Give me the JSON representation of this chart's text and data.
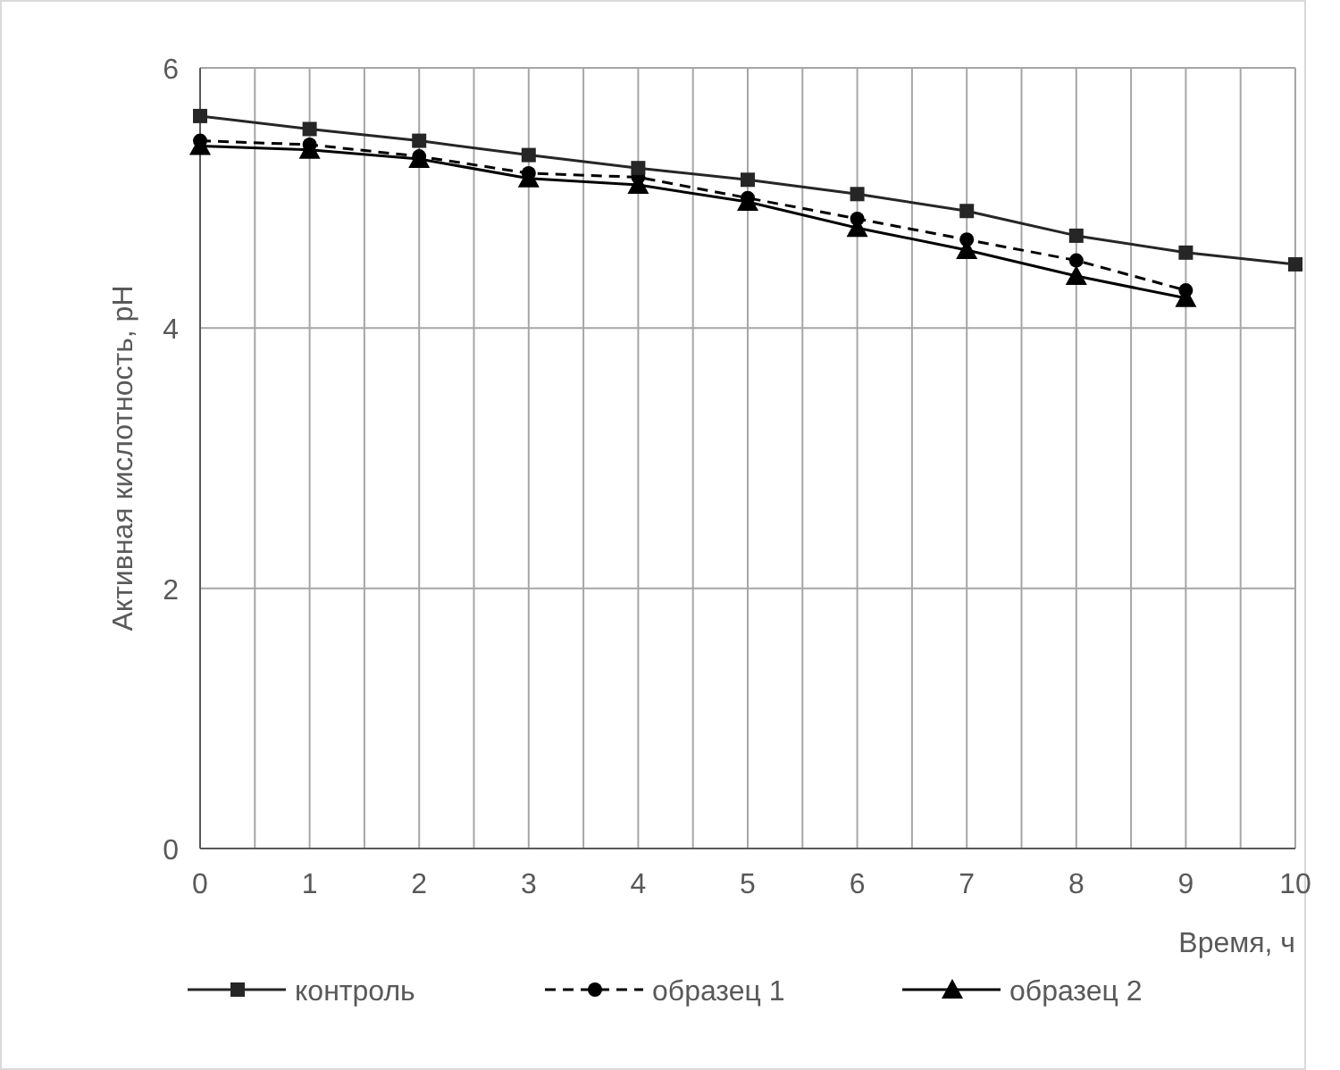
{
  "chart_data": {
    "type": "line",
    "xlabel": "Время, ч",
    "ylabel": "Активная кислотность, pH",
    "x": [
      0,
      1,
      2,
      3,
      4,
      5,
      6,
      7,
      8,
      9,
      10
    ],
    "xlim": [
      0,
      10
    ],
    "ylim": [
      0,
      6
    ],
    "xticks": [
      0,
      {
        "value": 0.5,
        "label": null
      },
      1,
      {
        "value": 1.5,
        "label": null
      },
      2,
      {
        "value": 2.5,
        "label": null
      },
      3,
      {
        "value": 3.5,
        "label": null
      },
      4,
      {
        "value": 4.5,
        "label": null
      },
      5,
      {
        "value": 5.5,
        "label": null
      },
      6,
      {
        "value": 6.5,
        "label": null
      },
      7,
      {
        "value": 7.5,
        "label": null
      },
      8,
      {
        "value": 8.5,
        "label": null
      },
      9,
      {
        "value": 9.5,
        "label": null
      },
      10
    ],
    "yticks": [
      0,
      2,
      4,
      6
    ],
    "grid": true,
    "legend": "bottom",
    "series": [
      {
        "name": "контроль",
        "color": "#262626",
        "marker": "square",
        "line_style": "solid",
        "values": [
          5.63,
          5.53,
          5.44,
          5.33,
          5.23,
          5.14,
          5.03,
          4.9,
          4.71,
          4.58,
          4.49
        ]
      },
      {
        "name": "образец 1",
        "color": "#000000",
        "marker": "circle",
        "line_style": "dashed",
        "values": [
          5.44,
          5.41,
          5.32,
          5.19,
          5.16,
          5.0,
          4.84,
          4.68,
          4.52,
          4.29,
          null
        ]
      },
      {
        "name": "образец 2",
        "color": "#000000",
        "marker": "triangle",
        "line_style": "solid",
        "values": [
          5.4,
          5.37,
          5.3,
          5.15,
          5.1,
          4.97,
          4.77,
          4.6,
          4.4,
          4.23,
          null
        ]
      }
    ]
  }
}
